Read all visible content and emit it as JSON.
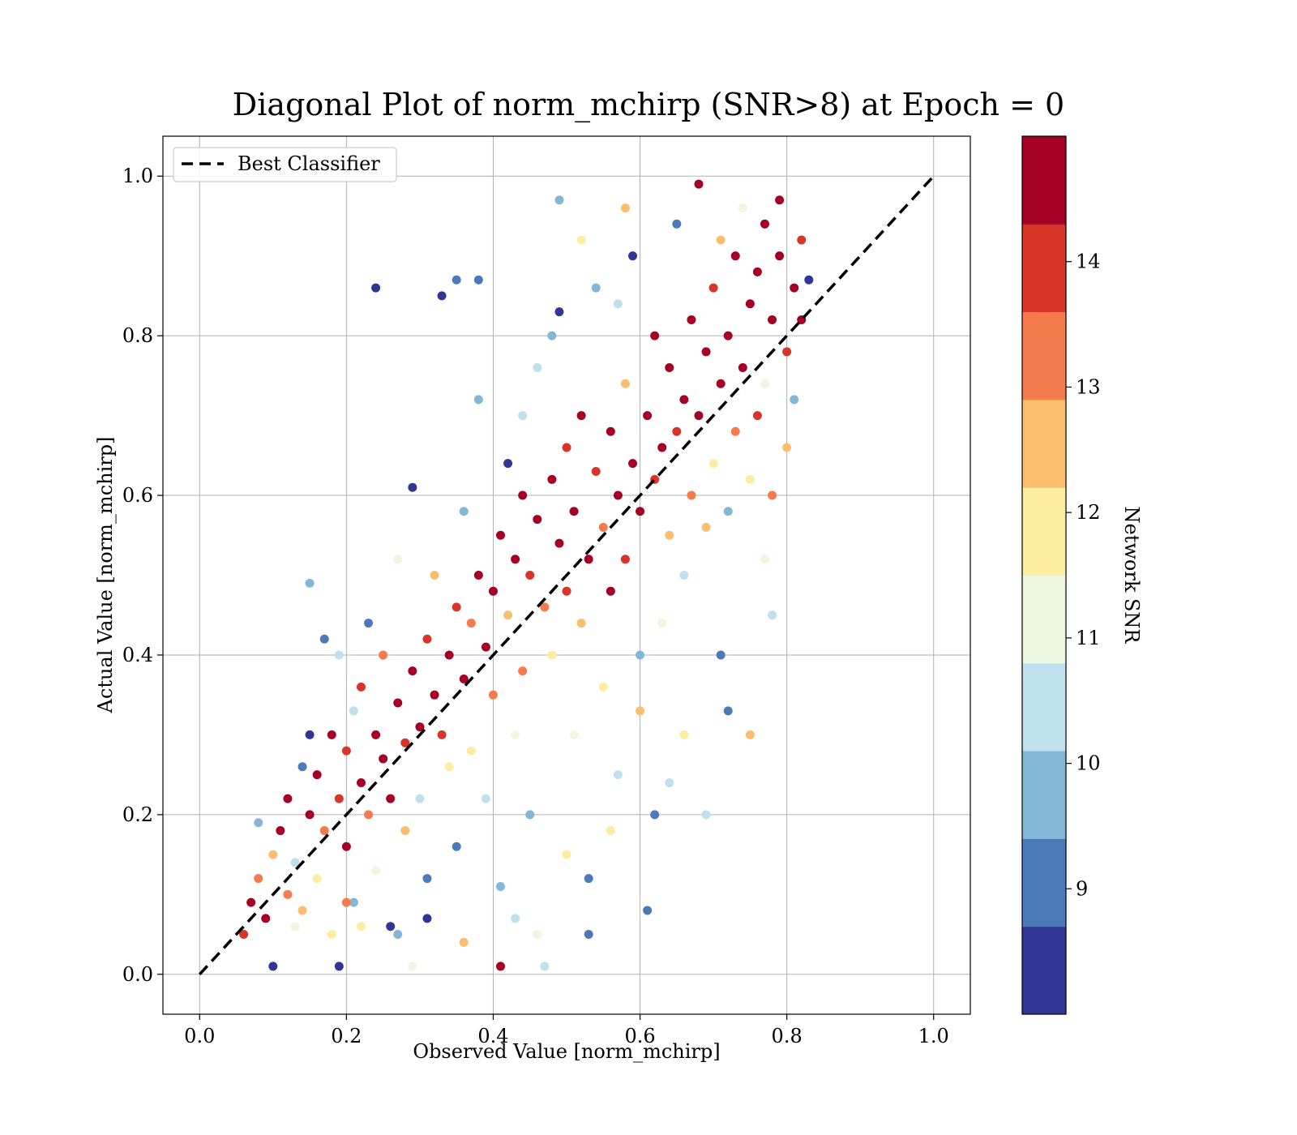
{
  "chart_data": {
    "type": "scatter",
    "title": "Diagonal Plot of norm_mchirp (SNR>8) at Epoch = 0",
    "xlabel": "Observed Value [norm_mchirp]",
    "ylabel": "Actual Value [norm_mchirp]",
    "xlim": [
      -0.05,
      1.05
    ],
    "ylim": [
      -0.05,
      1.05
    ],
    "xticks": [
      0.0,
      0.2,
      0.4,
      0.6,
      0.8,
      1.0
    ],
    "yticks": [
      0.0,
      0.2,
      0.4,
      0.6,
      0.8,
      1.0
    ],
    "xtick_labels": [
      "0.0",
      "0.2",
      "0.4",
      "0.6",
      "0.8",
      "1.0"
    ],
    "ytick_labels": [
      "0.0",
      "0.2",
      "0.4",
      "0.6",
      "0.8",
      "1.0"
    ],
    "grid": true,
    "legend": {
      "placement": "upper-left",
      "entries": [
        {
          "label": "Best Classifier",
          "style": "black dashed line"
        }
      ]
    },
    "reference_line": {
      "name": "Best Classifier",
      "x": [
        0.0,
        1.0
      ],
      "y": [
        0.0,
        1.0
      ],
      "color": "#000000",
      "dash": true
    },
    "colorbar": {
      "label": "Network SNR",
      "range": [
        8,
        15
      ],
      "ticks": [
        9,
        10,
        11,
        12,
        13,
        14
      ],
      "tick_labels": [
        "9",
        "10",
        "11",
        "12",
        "13",
        "14"
      ],
      "colors": [
        "#313695",
        "#4a7ab7",
        "#82b7d7",
        "#bfe1ed",
        "#eef7e0",
        "#fdeda1",
        "#fbbe6e",
        "#f47c4c",
        "#d73527",
        "#a50026"
      ]
    },
    "series_description": "dense cloud of points scattered along the diagonal y = x, colored by Network SNR",
    "points": [
      [
        0.06,
        0.05,
        14.2
      ],
      [
        0.07,
        0.09,
        14.6
      ],
      [
        0.08,
        0.12,
        13.1
      ],
      [
        0.09,
        0.07,
        14.8
      ],
      [
        0.1,
        0.15,
        12.4
      ],
      [
        0.1,
        0.01,
        8.5
      ],
      [
        0.11,
        0.18,
        14.3
      ],
      [
        0.12,
        0.1,
        13.6
      ],
      [
        0.12,
        0.22,
        14.7
      ],
      [
        0.13,
        0.14,
        10.2
      ],
      [
        0.14,
        0.26,
        9.1
      ],
      [
        0.14,
        0.08,
        12.7
      ],
      [
        0.15,
        0.2,
        14.9
      ],
      [
        0.15,
        0.3,
        8.4
      ],
      [
        0.16,
        0.12,
        11.6
      ],
      [
        0.16,
        0.25,
        14.5
      ],
      [
        0.17,
        0.18,
        13.2
      ],
      [
        0.17,
        0.42,
        9.3
      ],
      [
        0.18,
        0.05,
        12.1
      ],
      [
        0.18,
        0.3,
        14.6
      ],
      [
        0.19,
        0.22,
        14.1
      ],
      [
        0.19,
        0.01,
        8.7
      ],
      [
        0.2,
        0.28,
        13.8
      ],
      [
        0.2,
        0.16,
        14.4
      ],
      [
        0.21,
        0.33,
        10.4
      ],
      [
        0.21,
        0.09,
        9.6
      ],
      [
        0.22,
        0.24,
        14.8
      ],
      [
        0.22,
        0.36,
        14.2
      ],
      [
        0.23,
        0.2,
        12.9
      ],
      [
        0.23,
        0.44,
        8.8
      ],
      [
        0.24,
        0.3,
        14.7
      ],
      [
        0.24,
        0.13,
        10.9
      ],
      [
        0.25,
        0.27,
        14.9
      ],
      [
        0.25,
        0.4,
        13.4
      ],
      [
        0.26,
        0.22,
        14.3
      ],
      [
        0.26,
        0.06,
        8.2
      ],
      [
        0.27,
        0.34,
        14.6
      ],
      [
        0.27,
        0.52,
        11.3
      ],
      [
        0.28,
        0.29,
        13.9
      ],
      [
        0.28,
        0.18,
        12.6
      ],
      [
        0.29,
        0.38,
        14.8
      ],
      [
        0.29,
        0.61,
        8.3
      ],
      [
        0.3,
        0.31,
        14.4
      ],
      [
        0.3,
        0.22,
        10.7
      ],
      [
        0.31,
        0.42,
        14.1
      ],
      [
        0.31,
        0.12,
        9.2
      ],
      [
        0.32,
        0.35,
        14.9
      ],
      [
        0.32,
        0.5,
        12.3
      ],
      [
        0.33,
        0.3,
        13.7
      ],
      [
        0.33,
        0.85,
        8.4
      ],
      [
        0.34,
        0.4,
        14.7
      ],
      [
        0.34,
        0.26,
        11.8
      ],
      [
        0.35,
        0.46,
        14.2
      ],
      [
        0.35,
        0.16,
        8.9
      ],
      [
        0.36,
        0.37,
        14.8
      ],
      [
        0.36,
        0.58,
        10.1
      ],
      [
        0.37,
        0.44,
        13.5
      ],
      [
        0.37,
        0.28,
        12.2
      ],
      [
        0.38,
        0.5,
        14.6
      ],
      [
        0.38,
        0.72,
        9.4
      ],
      [
        0.39,
        0.41,
        14.9
      ],
      [
        0.39,
        0.22,
        10.6
      ],
      [
        0.4,
        0.48,
        14.3
      ],
      [
        0.4,
        0.35,
        13.1
      ],
      [
        0.41,
        0.55,
        14.7
      ],
      [
        0.41,
        0.01,
        14.6
      ],
      [
        0.42,
        0.45,
        12.8
      ],
      [
        0.42,
        0.64,
        8.6
      ],
      [
        0.43,
        0.52,
        14.4
      ],
      [
        0.43,
        0.3,
        11.2
      ],
      [
        0.44,
        0.6,
        14.9
      ],
      [
        0.44,
        0.38,
        13.6
      ],
      [
        0.45,
        0.5,
        14.1
      ],
      [
        0.45,
        0.2,
        9.8
      ],
      [
        0.46,
        0.57,
        14.8
      ],
      [
        0.46,
        0.76,
        10.3
      ],
      [
        0.47,
        0.46,
        13.3
      ],
      [
        0.47,
        0.01,
        10.4
      ],
      [
        0.48,
        0.62,
        14.5
      ],
      [
        0.48,
        0.4,
        12.1
      ],
      [
        0.49,
        0.54,
        14.9
      ],
      [
        0.49,
        0.83,
        8.7
      ],
      [
        0.5,
        0.48,
        14.2
      ],
      [
        0.5,
        0.66,
        13.8
      ],
      [
        0.51,
        0.58,
        14.6
      ],
      [
        0.51,
        0.3,
        10.9
      ],
      [
        0.52,
        0.7,
        14.3
      ],
      [
        0.52,
        0.44,
        12.6
      ],
      [
        0.53,
        0.52,
        14.8
      ],
      [
        0.53,
        0.05,
        8.9
      ],
      [
        0.54,
        0.63,
        14.1
      ],
      [
        0.54,
        0.86,
        9.6
      ],
      [
        0.55,
        0.56,
        13.4
      ],
      [
        0.55,
        0.36,
        11.7
      ],
      [
        0.56,
        0.68,
        14.7
      ],
      [
        0.56,
        0.48,
        14.4
      ],
      [
        0.57,
        0.6,
        14.9
      ],
      [
        0.57,
        0.25,
        10.2
      ],
      [
        0.58,
        0.74,
        12.5
      ],
      [
        0.58,
        0.52,
        14.2
      ],
      [
        0.59,
        0.64,
        14.6
      ],
      [
        0.59,
        0.9,
        8.5
      ],
      [
        0.6,
        0.58,
        14.8
      ],
      [
        0.6,
        0.4,
        9.7
      ],
      [
        0.61,
        0.7,
        14.3
      ],
      [
        0.61,
        0.08,
        9.2
      ],
      [
        0.62,
        0.62,
        13.9
      ],
      [
        0.62,
        0.8,
        14.7
      ],
      [
        0.63,
        0.66,
        14.5
      ],
      [
        0.63,
        0.44,
        11.4
      ],
      [
        0.64,
        0.76,
        14.9
      ],
      [
        0.64,
        0.55,
        12.8
      ],
      [
        0.65,
        0.68,
        14.1
      ],
      [
        0.65,
        0.94,
        9.1
      ],
      [
        0.66,
        0.72,
        14.6
      ],
      [
        0.66,
        0.5,
        10.6
      ],
      [
        0.67,
        0.82,
        14.8
      ],
      [
        0.67,
        0.6,
        13.2
      ],
      [
        0.68,
        0.7,
        14.4
      ],
      [
        0.68,
        0.99,
        14.7
      ],
      [
        0.69,
        0.78,
        14.9
      ],
      [
        0.69,
        0.56,
        12.3
      ],
      [
        0.7,
        0.86,
        14.2
      ],
      [
        0.7,
        0.64,
        11.6
      ],
      [
        0.71,
        0.74,
        14.7
      ],
      [
        0.71,
        0.92,
        12.7
      ],
      [
        0.72,
        0.8,
        14.5
      ],
      [
        0.72,
        0.58,
        9.9
      ],
      [
        0.73,
        0.9,
        14.8
      ],
      [
        0.73,
        0.68,
        13.6
      ],
      [
        0.74,
        0.76,
        14.3
      ],
      [
        0.74,
        0.96,
        11.1
      ],
      [
        0.75,
        0.84,
        14.9
      ],
      [
        0.75,
        0.62,
        12.2
      ],
      [
        0.76,
        0.88,
        14.6
      ],
      [
        0.76,
        0.7,
        14.1
      ],
      [
        0.77,
        0.94,
        14.8
      ],
      [
        0.77,
        0.74,
        10.8
      ],
      [
        0.78,
        0.82,
        14.4
      ],
      [
        0.78,
        0.6,
        13.3
      ],
      [
        0.79,
        0.9,
        14.7
      ],
      [
        0.79,
        0.97,
        14.5
      ],
      [
        0.8,
        0.78,
        14.2
      ],
      [
        0.8,
        0.66,
        12.4
      ],
      [
        0.81,
        0.86,
        14.9
      ],
      [
        0.81,
        0.72,
        9.4
      ],
      [
        0.82,
        0.92,
        13.8
      ],
      [
        0.82,
        0.82,
        14.6
      ],
      [
        0.83,
        0.87,
        8.6
      ],
      [
        0.08,
        0.19,
        9.8
      ],
      [
        0.13,
        0.06,
        11.4
      ],
      [
        0.2,
        0.09,
        12.9
      ],
      [
        0.24,
        0.86,
        8.3
      ],
      [
        0.27,
        0.05,
        10.1
      ],
      [
        0.31,
        0.07,
        8.6
      ],
      [
        0.35,
        0.87,
        9.2
      ],
      [
        0.38,
        0.87,
        8.8
      ],
      [
        0.41,
        0.11,
        9.4
      ],
      [
        0.46,
        0.05,
        10.8
      ],
      [
        0.49,
        0.97,
        9.6
      ],
      [
        0.53,
        0.12,
        8.9
      ],
      [
        0.58,
        0.96,
        12.6
      ],
      [
        0.62,
        0.2,
        9.3
      ],
      [
        0.64,
        0.24,
        10.4
      ],
      [
        0.69,
        0.2,
        10.6
      ],
      [
        0.72,
        0.33,
        9.0
      ],
      [
        0.75,
        0.3,
        12.5
      ],
      [
        0.78,
        0.45,
        10.7
      ],
      [
        0.56,
        0.18,
        12.2
      ],
      [
        0.5,
        0.15,
        11.9
      ],
      [
        0.43,
        0.07,
        10.5
      ],
      [
        0.36,
        0.04,
        12.3
      ],
      [
        0.29,
        0.01,
        11.2
      ],
      [
        0.22,
        0.06,
        12.1
      ],
      [
        0.15,
        0.49,
        9.7
      ],
      [
        0.19,
        0.4,
        10.2
      ],
      [
        0.44,
        0.7,
        10.5
      ],
      [
        0.48,
        0.8,
        9.9
      ],
      [
        0.52,
        0.92,
        11.7
      ],
      [
        0.57,
        0.84,
        10.2
      ],
      [
        0.6,
        0.33,
        12.4
      ],
      [
        0.66,
        0.3,
        11.8
      ],
      [
        0.71,
        0.4,
        9.2
      ],
      [
        0.77,
        0.52,
        11.3
      ]
    ]
  }
}
